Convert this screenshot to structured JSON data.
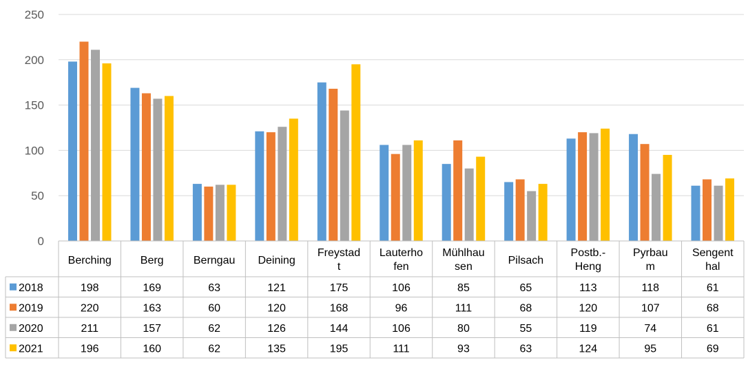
{
  "chart_data": {
    "type": "bar",
    "title": "",
    "xlabel": "",
    "ylabel": "",
    "ylim": [
      0,
      250
    ],
    "yticks": [
      0,
      50,
      100,
      150,
      200,
      250
    ],
    "grid": true,
    "legend": "data table",
    "categories": [
      [
        "Berching"
      ],
      [
        "Berg"
      ],
      [
        "Berngau"
      ],
      [
        "Deining"
      ],
      [
        "Freystad",
        "t"
      ],
      [
        "Lauterho",
        "fen"
      ],
      [
        "Mühlhau",
        "sen"
      ],
      [
        "Pilsach"
      ],
      [
        "Postb.-",
        "Heng"
      ],
      [
        "Pyrbau",
        "m"
      ],
      [
        "Sengent",
        "hal"
      ]
    ],
    "series": [
      {
        "name": "2018",
        "color": "#5b9bd5",
        "values": [
          198,
          169,
          63,
          121,
          175,
          106,
          85,
          65,
          113,
          118,
          61
        ]
      },
      {
        "name": "2019",
        "color": "#ed7d31",
        "values": [
          220,
          163,
          60,
          120,
          168,
          96,
          111,
          68,
          120,
          107,
          68
        ]
      },
      {
        "name": "2020",
        "color": "#a5a5a5",
        "values": [
          211,
          157,
          62,
          126,
          144,
          106,
          80,
          55,
          119,
          74,
          61
        ]
      },
      {
        "name": "2021",
        "color": "#ffc000",
        "values": [
          196,
          160,
          62,
          135,
          195,
          111,
          93,
          63,
          124,
          95,
          69
        ]
      }
    ]
  }
}
